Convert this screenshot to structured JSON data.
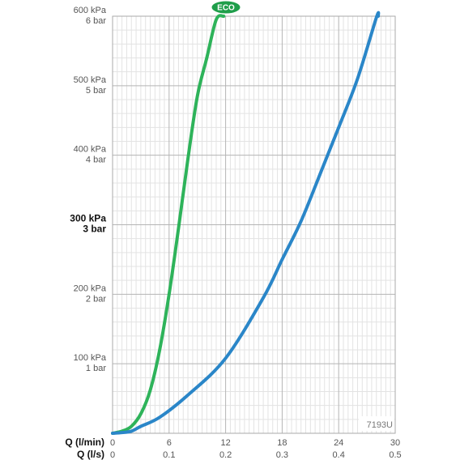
{
  "chart_data": {
    "type": "line",
    "x_primary": {
      "label": "Q (l/min)",
      "ticks": [
        "0",
        "6",
        "12",
        "18",
        "24",
        "30"
      ],
      "range": [
        0,
        30
      ]
    },
    "x_secondary": {
      "label": "Q (l/s)",
      "ticks": [
        "0",
        "0.1",
        "0.2",
        "0.3",
        "0.4",
        "0.5"
      ]
    },
    "y_axis": {
      "range": [
        0,
        600
      ],
      "unit": "kPa",
      "ticks": [
        {
          "value": 100,
          "kpa": "100 kPa",
          "bar": "1 bar",
          "bold": false
        },
        {
          "value": 200,
          "kpa": "200 kPa",
          "bar": "2 bar",
          "bold": false
        },
        {
          "value": 300,
          "kpa": "300 kPa",
          "bar": "3 bar",
          "bold": true
        },
        {
          "value": 400,
          "kpa": "400 kPa",
          "bar": "4 bar",
          "bold": false
        },
        {
          "value": 500,
          "kpa": "500 kPa",
          "bar": "5 bar",
          "bold": false
        },
        {
          "value": 600,
          "kpa": "600 kPa",
          "bar": "6 bar",
          "bold": false
        }
      ]
    },
    "grid": true,
    "series": [
      {
        "name": "ECO",
        "color": "#2eb35a",
        "points": [
          [
            0,
            0
          ],
          [
            1,
            3
          ],
          [
            2,
            10
          ],
          [
            3,
            28
          ],
          [
            4,
            62
          ],
          [
            5,
            120
          ],
          [
            6,
            200
          ],
          [
            7,
            295
          ],
          [
            8,
            395
          ],
          [
            9,
            485
          ],
          [
            10,
            540
          ],
          [
            11,
            595
          ],
          [
            11.8,
            600
          ]
        ]
      },
      {
        "color": "#2a86c8",
        "points": [
          [
            0,
            0
          ],
          [
            1,
            1
          ],
          [
            2,
            3
          ],
          [
            3,
            10
          ],
          [
            5,
            23
          ],
          [
            8,
            55
          ],
          [
            12,
            108
          ],
          [
            16,
            195
          ],
          [
            18,
            250
          ],
          [
            20,
            305
          ],
          [
            22,
            372
          ],
          [
            24,
            440
          ],
          [
            26,
            510
          ],
          [
            28,
            598
          ],
          [
            28.2,
            600
          ]
        ]
      }
    ],
    "annotations": {
      "badge": "ECO",
      "badge_color": "#1f9e4a",
      "code": "7193U"
    }
  }
}
